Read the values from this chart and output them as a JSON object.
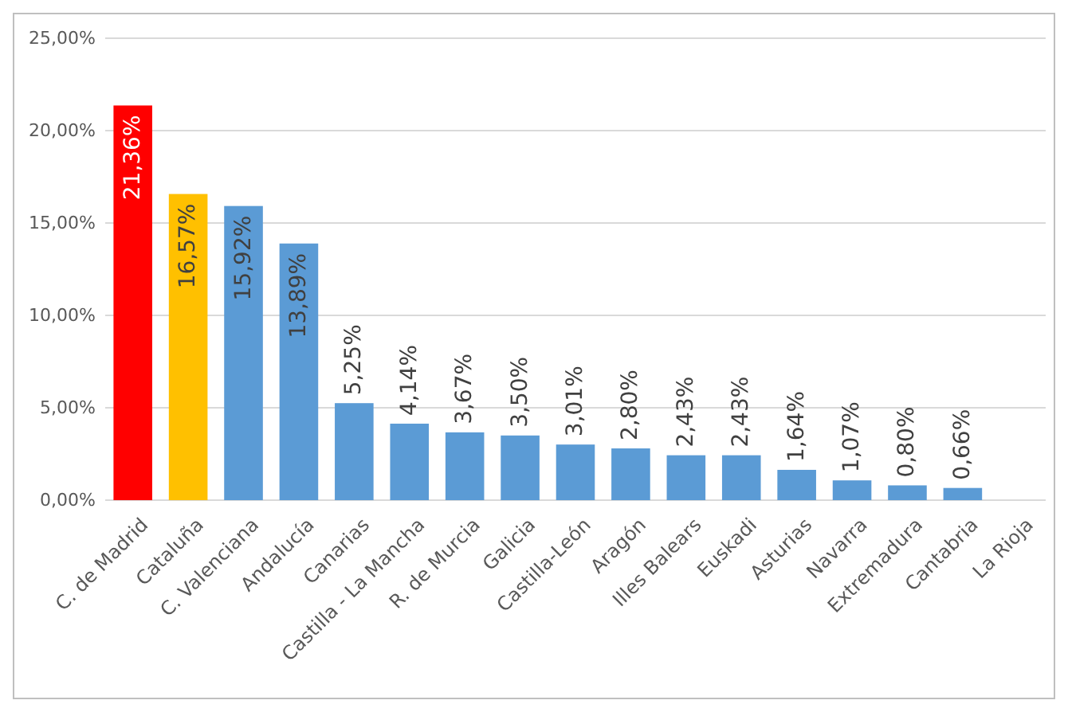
{
  "chart_data": {
    "type": "bar",
    "categories": [
      "C. de Madrid",
      "Cataluña",
      "C. Valenciana",
      "Andalucía",
      "Canarias",
      "Castilla - La Mancha",
      "R. de Murcia",
      "Galicia",
      "Castilla-León",
      "Aragón",
      "Illes Balears",
      "Euskadi",
      "Asturias",
      "Navarra",
      "Extremadura",
      "Cantabria",
      "La Rioja"
    ],
    "values": [
      21.36,
      16.57,
      15.92,
      13.89,
      5.25,
      4.14,
      3.67,
      3.5,
      3.01,
      2.8,
      2.43,
      2.43,
      1.64,
      1.07,
      0.8,
      0.66,
      null
    ],
    "colors": [
      "#ff0000",
      "#ffc000",
      "#5b9bd5",
      "#5b9bd5",
      "#5b9bd5",
      "#5b9bd5",
      "#5b9bd5",
      "#5b9bd5",
      "#5b9bd5",
      "#5b9bd5",
      "#5b9bd5",
      "#5b9bd5",
      "#5b9bd5",
      "#5b9bd5",
      "#5b9bd5",
      "#5b9bd5",
      "#5b9bd5"
    ],
    "value_labels": [
      "21,36%",
      "16,57%",
      "15,92%",
      "13,89%",
      "5,25%",
      "4,14%",
      "3,67%",
      "3,50%",
      "3,01%",
      "2,80%",
      "2,43%",
      "2,43%",
      "1,64%",
      "1,07%",
      "0,80%",
      "0,66%",
      null
    ],
    "ylim": [
      0,
      25
    ],
    "yticks": [
      {
        "value": 0,
        "label": "0,00%"
      },
      {
        "value": 5,
        "label": "5,00%"
      },
      {
        "value": 10,
        "label": "10,00%"
      },
      {
        "value": 15,
        "label": "15,00%"
      },
      {
        "value": 20,
        "label": "20,00%"
      },
      {
        "value": 25,
        "label": "25,00%"
      }
    ],
    "grid": "y"
  }
}
